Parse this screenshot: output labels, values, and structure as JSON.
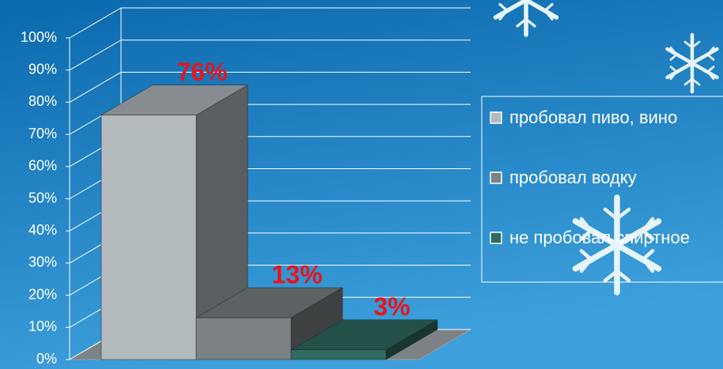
{
  "chart_data": {
    "type": "bar3d",
    "series": [
      {
        "name": "пробовал пиво, вино",
        "color": "#b3bbbf",
        "values": [
          76
        ],
        "value_labels": [
          "76%"
        ]
      },
      {
        "name": "пробовал водку",
        "color": "#7b8184",
        "values": [
          13
        ],
        "value_labels": [
          "13%"
        ]
      },
      {
        "name": "не пробовал спиртное",
        "color": "#2f6b60",
        "values": [
          3
        ],
        "value_labels": [
          "3%"
        ]
      }
    ],
    "ylim": [
      0,
      100
    ],
    "yticks": [
      {
        "value": 0,
        "label": "0%"
      },
      {
        "value": 10,
        "label": "10%"
      },
      {
        "value": 20,
        "label": "20%"
      },
      {
        "value": 30,
        "label": "30%"
      },
      {
        "value": 40,
        "label": "40%"
      },
      {
        "value": 50,
        "label": "50%"
      },
      {
        "value": 60,
        "label": "60%"
      },
      {
        "value": 70,
        "label": "70%"
      },
      {
        "value": 80,
        "label": "80%"
      },
      {
        "value": 90,
        "label": "90%"
      },
      {
        "value": 100,
        "label": "100%"
      }
    ],
    "grid": true,
    "value_label_color": "#e8141b"
  }
}
